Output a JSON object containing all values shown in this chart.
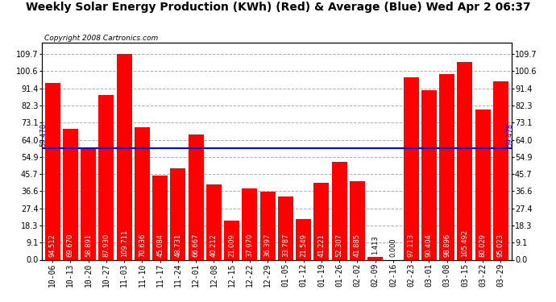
{
  "title": "Weekly Solar Energy Production (KWh) (Red) & Average (Blue) Wed Apr 2 06:37",
  "copyright": "Copyright 2008 Cartronics.com",
  "categories": [
    "10-06",
    "10-13",
    "10-20",
    "10-27",
    "11-03",
    "11-10",
    "11-17",
    "11-24",
    "12-01",
    "12-08",
    "12-15",
    "12-22",
    "12-29",
    "01-05",
    "01-12",
    "01-19",
    "01-26",
    "02-02",
    "02-09",
    "02-16",
    "02-23",
    "03-01",
    "03-08",
    "03-15",
    "03-22",
    "03-29"
  ],
  "values": [
    94.512,
    69.67,
    58.891,
    87.93,
    109.711,
    70.636,
    45.084,
    48.731,
    66.667,
    40.212,
    21.009,
    37.97,
    36.397,
    33.787,
    21.549,
    41.221,
    52.307,
    41.885,
    1.413,
    0.0,
    97.113,
    90.404,
    98.896,
    105.492,
    80.029,
    95.023
  ],
  "average": 59.478,
  "bar_color": "#ff0000",
  "avg_line_color": "#0000ff",
  "bg_color": "#ffffff",
  "plot_bg_color": "#ffffff",
  "grid_color": "#b0b0b0",
  "title_fontsize": 10,
  "copyright_fontsize": 6.5,
  "bar_label_fontsize": 6,
  "tick_fontsize": 7,
  "yticks": [
    0.0,
    9.1,
    18.3,
    27.4,
    36.6,
    45.7,
    54.9,
    64.0,
    73.1,
    82.3,
    91.4,
    100.6,
    109.7
  ],
  "ylim": [
    0.0,
    116.0
  ],
  "avg_label": "59.478"
}
